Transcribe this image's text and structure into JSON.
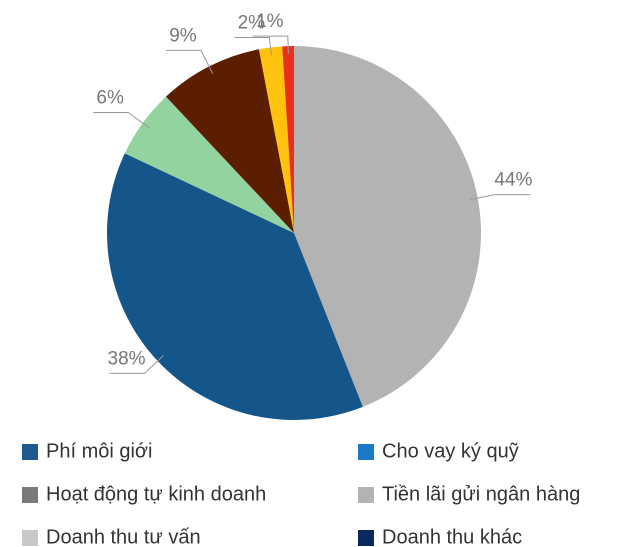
{
  "chart_data": {
    "type": "pie",
    "values": [
      44,
      38,
      6,
      9,
      2,
      1
    ],
    "value_labels": [
      "44%",
      "38%",
      "6%",
      "9%",
      "2%",
      "1%"
    ],
    "colors": [
      "#b3b3b3",
      "#14558a",
      "#93d3a0",
      "#5c1e00",
      "#ffc20e",
      "#e8301c"
    ],
    "legend": [
      {
        "name": "Phí môi giới",
        "color": "#1f5a8e"
      },
      {
        "name": "Cho vay ký quỹ",
        "color": "#1a7ac4"
      },
      {
        "name": "Hoạt động tự kinh doanh",
        "color": "#7a7a7a"
      },
      {
        "name": "Tiền lãi gửi ngân hàng",
        "color": "#b3b3b3"
      },
      {
        "name": "Doanh thu tư vấn",
        "color": "#c8c8c8"
      },
      {
        "name": "Doanh thu khác",
        "color": "#0a2a5e"
      }
    ]
  }
}
